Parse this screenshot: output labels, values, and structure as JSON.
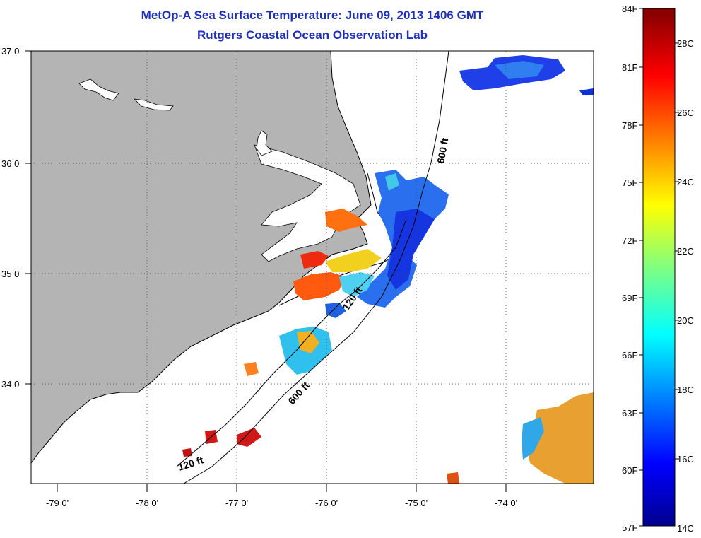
{
  "title": "MetOp-A Sea Surface Temperature:  June 09, 2013 1406 GMT",
  "subtitle": "Rutgers Coastal Ocean Observation Lab",
  "map": {
    "longitude_labels": [
      "-79 0'",
      "-78 0'",
      "-77 0'",
      "-76 0'",
      "-75 0'",
      "-74 0'"
    ],
    "latitude_labels": [
      "37 0'",
      "36 0'",
      "35 0'",
      "34 0'"
    ],
    "land_color": "#b4b4b4",
    "isobath_labels": [
      "600 ft",
      "120 ft",
      "600 ft",
      "120 ft"
    ]
  },
  "colorbar": {
    "fahrenheit_labels": [
      "84F",
      "81F",
      "78F",
      "75F",
      "72F",
      "69F",
      "66F",
      "63F",
      "60F",
      "57F"
    ],
    "celsius_labels": [
      "28C",
      "26C",
      "24C",
      "22C",
      "20C",
      "18C",
      "16C",
      "14C"
    ],
    "colormap": "jet",
    "min_c": 14,
    "max_c": 29
  }
}
